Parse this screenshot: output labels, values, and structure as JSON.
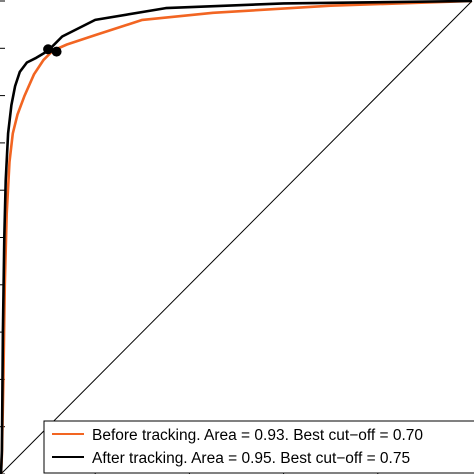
{
  "chart_data": {
    "type": "line",
    "title": "",
    "xlabel": "",
    "ylabel": "",
    "xlim": [
      0,
      1
    ],
    "ylim": [
      0,
      1
    ],
    "grid": false,
    "legend_position": "bottom-right",
    "series": [
      {
        "name": "Before tracking. Area = 0.93. Best cut−off = 0.70",
        "color": "#f26522",
        "points": [
          [
            0,
            0
          ],
          [
            0.002,
            0.04
          ],
          [
            0.005,
            0.2
          ],
          [
            0.008,
            0.4
          ],
          [
            0.012,
            0.55
          ],
          [
            0.018,
            0.66
          ],
          [
            0.025,
            0.72
          ],
          [
            0.035,
            0.76
          ],
          [
            0.05,
            0.8
          ],
          [
            0.07,
            0.845
          ],
          [
            0.09,
            0.875
          ],
          [
            0.11,
            0.895
          ],
          [
            0.14,
            0.908
          ],
          [
            0.2,
            0.928
          ],
          [
            0.3,
            0.96
          ],
          [
            0.45,
            0.975
          ],
          [
            0.7,
            0.99
          ],
          [
            1,
            1
          ]
        ],
        "marker": [
          0.118,
          0.893
        ]
      },
      {
        "name": "After tracking. Area = 0.95. Best cut−off = 0.75",
        "color": "#000000",
        "points": [
          [
            0,
            0
          ],
          [
            0.002,
            0.05
          ],
          [
            0.004,
            0.3
          ],
          [
            0.007,
            0.5
          ],
          [
            0.01,
            0.62
          ],
          [
            0.015,
            0.72
          ],
          [
            0.022,
            0.78
          ],
          [
            0.03,
            0.82
          ],
          [
            0.04,
            0.85
          ],
          [
            0.055,
            0.87
          ],
          [
            0.075,
            0.88
          ],
          [
            0.1,
            0.895
          ],
          [
            0.13,
            0.925
          ],
          [
            0.2,
            0.96
          ],
          [
            0.35,
            0.985
          ],
          [
            0.6,
            0.995
          ],
          [
            1,
            1
          ]
        ],
        "marker": [
          0.1,
          0.898
        ]
      },
      {
        "name": "",
        "color": "#000000",
        "points": [
          [
            0,
            0
          ],
          [
            1,
            1
          ]
        ]
      }
    ]
  }
}
